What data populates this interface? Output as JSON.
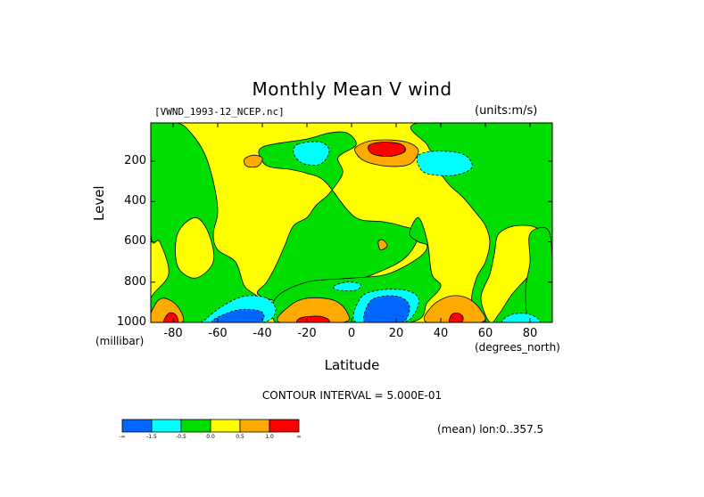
{
  "chart_data": {
    "type": "heatmap",
    "title": "Monthly Mean V wind",
    "file_label": "[VWND_1993-12_NCEP.nc]",
    "units_label": "(units:m/s)",
    "xlabel": "Latitude",
    "x_unit": "(degrees_north)",
    "ylabel": "Level",
    "y_unit": "(millibar)",
    "xlim": [
      -90,
      90
    ],
    "ylim": [
      1000,
      10
    ],
    "x_ticks": [
      "-80",
      "-60",
      "-40",
      "-20",
      "0",
      "20",
      "40",
      "60",
      "80"
    ],
    "y_ticks": [
      "200",
      "400",
      "600",
      "800",
      "1000"
    ],
    "contour_interval_text": "CONTOUR INTERVAL = 5.000E-01",
    "mean_text": "(mean) lon:0..357.5",
    "colorbar": {
      "colors": [
        "#0066ff",
        "#00ffff",
        "#00dd00",
        "#ffff00",
        "#ffaa00",
        "#ff0000"
      ],
      "tick_labels": [
        "-∞",
        "-1.5",
        "-0.5",
        "0.0",
        "0.5",
        "1.0",
        "∞"
      ]
    },
    "regions": [
      {
        "name": "background",
        "value_range": [
          0.0,
          0.5
        ],
        "color": "#ffff00"
      },
      {
        "name": "green-area",
        "value_range": [
          -0.5,
          0.0
        ],
        "color": "#00dd00"
      },
      {
        "name": "cyan-area",
        "value_range": [
          -1.5,
          -0.5
        ],
        "color": "#00ffff"
      },
      {
        "name": "blue-area",
        "value_range": [
          -100,
          -1.5
        ],
        "color": "#0066ff"
      },
      {
        "name": "orange-area",
        "value_range": [
          0.5,
          1.0
        ],
        "color": "#ffaa00"
      },
      {
        "name": "red-area",
        "value_range": [
          1.0,
          100
        ],
        "color": "#ff0000"
      }
    ]
  }
}
